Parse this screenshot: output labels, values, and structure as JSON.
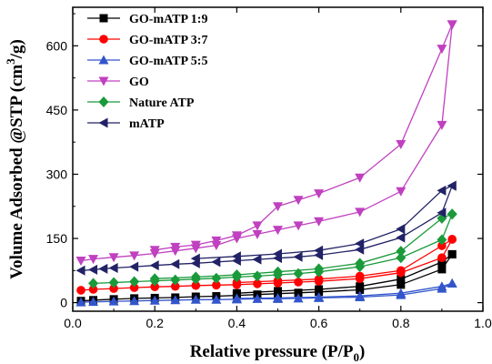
{
  "chart_data": {
    "type": "line",
    "title": "",
    "xlabel": "Relative pressure (P/P",
    "xlabel_sub": "0",
    "xlabel_end": ")",
    "ylabel": "Volume Adsorbed @STP (cm",
    "ylabel_sup": "3",
    "ylabel_end": "/g)",
    "xlim": [
      0.0,
      1.0
    ],
    "ylim": [
      -20,
      690
    ],
    "xticks": [
      0.0,
      0.2,
      0.4,
      0.6,
      0.8,
      1.0
    ],
    "xtick_labels": [
      "0.0",
      "0.2",
      "0.4",
      "0.6",
      "0.8",
      "1.0"
    ],
    "yticks": [
      0,
      150,
      300,
      450,
      600
    ],
    "ytick_labels": [
      "0",
      "150",
      "300",
      "450",
      "600"
    ],
    "legend_position": "top-left",
    "grid": false,
    "series": [
      {
        "name": "GO-mATP 1:9",
        "color": "#000000",
        "marker": "square",
        "adsorption": [
          [
            0.02,
            4
          ],
          [
            0.05,
            6
          ],
          [
            0.1,
            8
          ],
          [
            0.15,
            10
          ],
          [
            0.2,
            11
          ],
          [
            0.25,
            12
          ],
          [
            0.3,
            14
          ],
          [
            0.35,
            15
          ],
          [
            0.4,
            17
          ],
          [
            0.45,
            19
          ],
          [
            0.5,
            21
          ],
          [
            0.55,
            23
          ],
          [
            0.6,
            25
          ],
          [
            0.7,
            30
          ],
          [
            0.8,
            42
          ],
          [
            0.9,
            78
          ],
          [
            0.925,
            113
          ]
        ],
        "desorption": [
          [
            0.925,
            113
          ],
          [
            0.9,
            95
          ],
          [
            0.8,
            55
          ],
          [
            0.7,
            38
          ],
          [
            0.6,
            31
          ],
          [
            0.5,
            27
          ],
          [
            0.4,
            22
          ]
        ]
      },
      {
        "name": "GO-mATP 3:7",
        "color": "#ff0000",
        "marker": "circle",
        "adsorption": [
          [
            0.02,
            29
          ],
          [
            0.05,
            31
          ],
          [
            0.1,
            33
          ],
          [
            0.15,
            35
          ],
          [
            0.2,
            37
          ],
          [
            0.25,
            38
          ],
          [
            0.3,
            40
          ],
          [
            0.35,
            41
          ],
          [
            0.4,
            42
          ],
          [
            0.45,
            44
          ],
          [
            0.5,
            46
          ],
          [
            0.55,
            48
          ],
          [
            0.6,
            50
          ],
          [
            0.7,
            56
          ],
          [
            0.8,
            70
          ],
          [
            0.9,
            105
          ],
          [
            0.925,
            148
          ]
        ],
        "desorption": [
          [
            0.925,
            148
          ],
          [
            0.9,
            133
          ],
          [
            0.8,
            75
          ],
          [
            0.7,
            62
          ],
          [
            0.6,
            55
          ],
          [
            0.5,
            51
          ],
          [
            0.4,
            47
          ]
        ]
      },
      {
        "name": "GO-mATP 5:5",
        "color": "#3355cc",
        "marker": "triangle-up",
        "adsorption": [
          [
            0.02,
            1
          ],
          [
            0.05,
            2
          ],
          [
            0.1,
            3
          ],
          [
            0.15,
            4
          ],
          [
            0.2,
            5
          ],
          [
            0.25,
            6
          ],
          [
            0.3,
            7
          ],
          [
            0.35,
            7
          ],
          [
            0.4,
            8
          ],
          [
            0.45,
            9
          ],
          [
            0.5,
            9
          ],
          [
            0.55,
            10
          ],
          [
            0.6,
            11
          ],
          [
            0.7,
            13
          ],
          [
            0.8,
            18
          ],
          [
            0.9,
            33
          ],
          [
            0.925,
            45
          ]
        ],
        "desorption": [
          [
            0.925,
            45
          ],
          [
            0.9,
            38
          ],
          [
            0.8,
            22
          ],
          [
            0.7,
            16
          ],
          [
            0.6,
            13
          ],
          [
            0.5,
            11
          ],
          [
            0.4,
            10
          ]
        ]
      },
      {
        "name": "GO",
        "color": "#c040c0",
        "marker": "triangle-down",
        "adsorption": [
          [
            0.02,
            98
          ],
          [
            0.05,
            102
          ],
          [
            0.1,
            106
          ],
          [
            0.15,
            110
          ],
          [
            0.2,
            115
          ],
          [
            0.25,
            121
          ],
          [
            0.3,
            127
          ],
          [
            0.35,
            134
          ],
          [
            0.4,
            150
          ],
          [
            0.45,
            160
          ],
          [
            0.5,
            170
          ],
          [
            0.55,
            180
          ],
          [
            0.6,
            190
          ],
          [
            0.7,
            212
          ],
          [
            0.8,
            260
          ],
          [
            0.9,
            415
          ],
          [
            0.925,
            650
          ]
        ],
        "desorption": [
          [
            0.925,
            650
          ],
          [
            0.9,
            593
          ],
          [
            0.8,
            370
          ],
          [
            0.7,
            292
          ],
          [
            0.6,
            255
          ],
          [
            0.55,
            240
          ],
          [
            0.5,
            225
          ],
          [
            0.45,
            180
          ],
          [
            0.4,
            157
          ],
          [
            0.35,
            145
          ],
          [
            0.3,
            135
          ],
          [
            0.25,
            130
          ],
          [
            0.2,
            123
          ]
        ]
      },
      {
        "name": "Nature ATP",
        "color": "#1a9a3a",
        "marker": "diamond",
        "adsorption": [
          [
            0.05,
            45
          ],
          [
            0.1,
            47
          ],
          [
            0.15,
            49
          ],
          [
            0.2,
            51
          ],
          [
            0.25,
            53
          ],
          [
            0.3,
            55
          ],
          [
            0.35,
            57
          ],
          [
            0.4,
            60
          ],
          [
            0.45,
            62
          ],
          [
            0.5,
            65
          ],
          [
            0.55,
            68
          ],
          [
            0.6,
            72
          ],
          [
            0.7,
            84
          ],
          [
            0.8,
            105
          ],
          [
            0.9,
            147
          ],
          [
            0.925,
            207
          ]
        ],
        "desorption": [
          [
            0.925,
            207
          ],
          [
            0.9,
            197
          ],
          [
            0.8,
            120
          ],
          [
            0.7,
            92
          ],
          [
            0.6,
            79
          ],
          [
            0.5,
            72
          ],
          [
            0.4,
            65
          ],
          [
            0.3,
            60
          ],
          [
            0.2,
            56
          ]
        ]
      },
      {
        "name": "mATP",
        "color": "#222266",
        "marker": "triangle-left",
        "adsorption": [
          [
            0.02,
            75
          ],
          [
            0.05,
            77
          ],
          [
            0.075,
            79
          ],
          [
            0.1,
            81
          ],
          [
            0.15,
            84
          ],
          [
            0.2,
            87
          ],
          [
            0.25,
            90
          ],
          [
            0.3,
            92
          ],
          [
            0.35,
            95
          ],
          [
            0.4,
            98
          ],
          [
            0.45,
            101
          ],
          [
            0.5,
            104
          ],
          [
            0.55,
            107
          ],
          [
            0.6,
            111
          ],
          [
            0.7,
            124
          ],
          [
            0.8,
            152
          ],
          [
            0.9,
            210
          ],
          [
            0.925,
            273
          ]
        ],
        "desorption": [
          [
            0.925,
            273
          ],
          [
            0.9,
            262
          ],
          [
            0.8,
            172
          ],
          [
            0.7,
            138
          ],
          [
            0.6,
            122
          ],
          [
            0.5,
            114
          ],
          [
            0.4,
            108
          ],
          [
            0.3,
            103
          ]
        ]
      }
    ]
  }
}
